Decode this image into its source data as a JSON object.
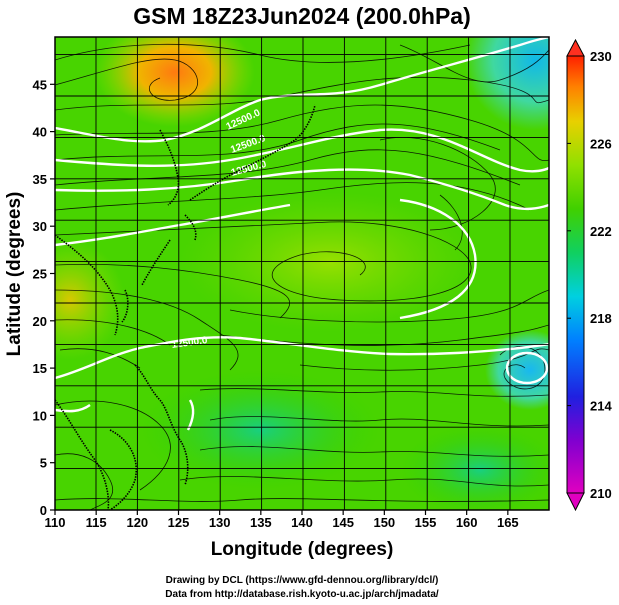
{
  "title": "GSM 18Z23Jun2024 (200.0hPa)",
  "x_axis": {
    "label": "Longitude (degrees)",
    "ticks": [
      110,
      115,
      120,
      125,
      130,
      135,
      140,
      145,
      150,
      155,
      160,
      165
    ],
    "range": [
      110,
      170
    ]
  },
  "y_axis": {
    "label": "Latitude  (degrees)",
    "ticks": [
      0,
      5,
      10,
      15,
      20,
      25,
      30,
      35,
      40,
      45
    ],
    "range": [
      0,
      50
    ]
  },
  "colorbar": {
    "ticks": [
      210,
      214,
      218,
      222,
      226,
      230
    ],
    "range": [
      210,
      230
    ],
    "colors": [
      "#d400c8",
      "#4000d0",
      "#0060ff",
      "#00c8ff",
      "#00e080",
      "#30d000",
      "#90e000",
      "#e0d000",
      "#ff8000",
      "#ff2000"
    ]
  },
  "contour_labels": [
    "12500.0",
    "12500.0",
    "12500.0",
    "12500.0"
  ],
  "credits": {
    "line1": "Drawing by DCL (https://www.gfd-dennou.org/library/dcl/)",
    "line2": "Data from http://database.rish.kyoto-u.ac.jp/arch/jmadata/"
  },
  "colors": {
    "grid": "#000000",
    "background_field": "#44d400",
    "warm_anomaly": "#ff8c1a",
    "cool_anomaly": "#00c8e8",
    "contour": "#ffffff"
  }
}
